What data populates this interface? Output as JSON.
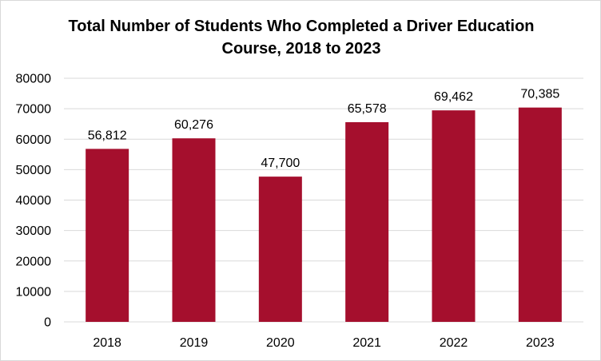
{
  "chart_data": {
    "type": "bar",
    "title_line1": "Total Number of Students Who Completed a Driver Education",
    "title_line2": "Course, 2018 to 2023",
    "categories": [
      "2018",
      "2019",
      "2020",
      "2021",
      "2022",
      "2023"
    ],
    "values": [
      56812,
      60276,
      47700,
      65578,
      69462,
      70385
    ],
    "data_labels": [
      "56,812",
      "60,276",
      "47,700",
      "65,578",
      "69,462",
      "70,385"
    ],
    "ylim": [
      0,
      80000
    ],
    "yticks": [
      "0",
      "10000",
      "20000",
      "30000",
      "40000",
      "50000",
      "60000",
      "70000",
      "80000"
    ],
    "xlabel": "",
    "ylabel": "",
    "grid": "horizontal",
    "legend": "none",
    "bar_color": "#A50F2D",
    "grid_color": "#D9D9D9"
  }
}
